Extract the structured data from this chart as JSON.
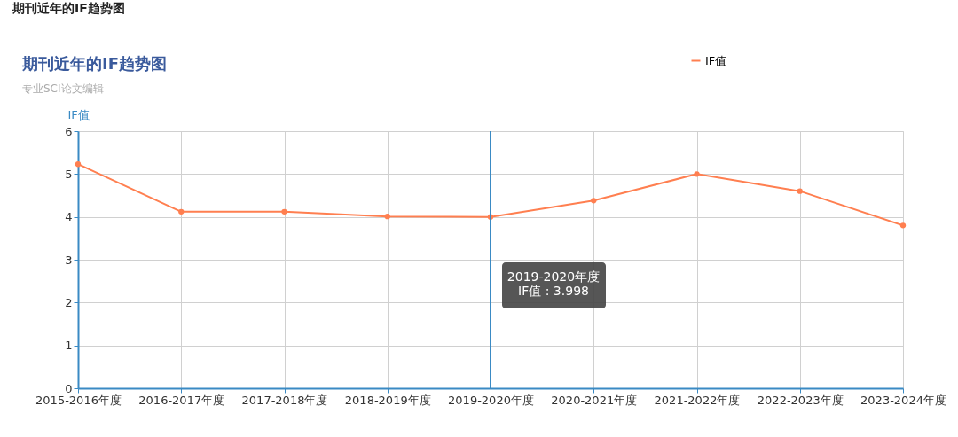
{
  "chart_data": {
    "type": "line",
    "title": "期刊近年的IF趋势图",
    "subtitle": "专业SCI论文编辑",
    "ylabel": "IF值",
    "categories": [
      "2015-2016年度",
      "2016-2017年度",
      "2017-2018年度",
      "2018-2019年度",
      "2019-2020年度",
      "2020-2021年度",
      "2021-2022年度",
      "2022-2023年度",
      "2023-2024年度"
    ],
    "series": [
      {
        "name": "IF值",
        "color": "#ff7f50",
        "values": [
          5.23,
          4.12,
          4.12,
          4.01,
          3.998,
          4.38,
          5.0,
          4.6,
          3.8
        ]
      }
    ],
    "ylim": [
      0,
      6
    ],
    "yticks": [
      0,
      1,
      2,
      3,
      4,
      5,
      6
    ],
    "grid": true,
    "legend": "top right",
    "marker": "circle",
    "line_style": "solid",
    "ref_lines": [
      {
        "axis": "x",
        "value": "2019-2020年度",
        "label": null,
        "color": "#3a8ac4"
      }
    ],
    "annotations": [
      "期刊近年的IF趋势图",
      "2019-2020年度\nIF值 : 3.998"
    ]
  }
}
